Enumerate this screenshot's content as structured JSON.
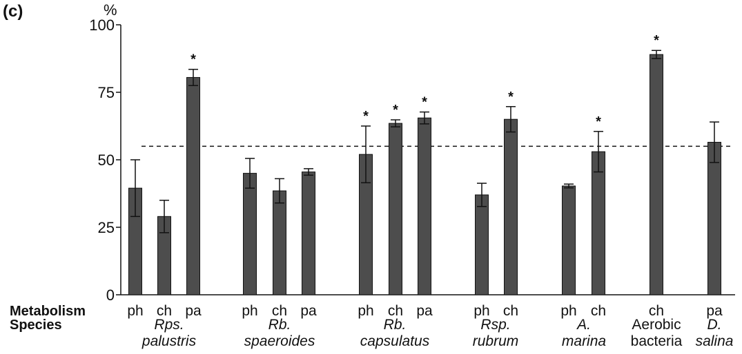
{
  "chart_data": {
    "type": "bar",
    "panel_label": "(c)",
    "ylabel": "%",
    "ylim": [
      0,
      100
    ],
    "yticks": [
      0,
      25,
      50,
      75,
      100
    ],
    "y_tick_labels": [
      "0",
      "25",
      "50",
      "75",
      "100"
    ],
    "reference_line": 55,
    "row_labels": {
      "metabolism": "Metabolism",
      "species": "Species"
    },
    "bar_color": "#4d4d4d",
    "groups": [
      {
        "species_lines": [
          "Rps.",
          "palustris"
        ],
        "italic": true,
        "bars": [
          {
            "metabolism": "ph",
            "value": 39.5,
            "err": 10.5,
            "star": false
          },
          {
            "metabolism": "ch",
            "value": 29,
            "err": 6,
            "star": false
          },
          {
            "metabolism": "pa",
            "value": 80.5,
            "err": 3,
            "star": true
          }
        ]
      },
      {
        "species_lines": [
          "Rb.",
          "spaeroides"
        ],
        "italic": true,
        "bars": [
          {
            "metabolism": "ph",
            "value": 45,
            "err": 5.5,
            "star": false
          },
          {
            "metabolism": "ch",
            "value": 38.5,
            "err": 4.5,
            "star": false
          },
          {
            "metabolism": "pa",
            "value": 45.5,
            "err": 1.2,
            "star": false
          }
        ]
      },
      {
        "species_lines": [
          "Rb.",
          "capsulatus"
        ],
        "italic": true,
        "bars": [
          {
            "metabolism": "ph",
            "value": 52,
            "err": 10.5,
            "star": true
          },
          {
            "metabolism": "ch",
            "value": 63.5,
            "err": 1.3,
            "star": true
          },
          {
            "metabolism": "pa",
            "value": 65.5,
            "err": 2.2,
            "star": true
          }
        ]
      },
      {
        "species_lines": [
          "Rsp.",
          "rubrum"
        ],
        "italic": true,
        "bars": [
          {
            "metabolism": "ph",
            "value": 37,
            "err": 4.3,
            "star": false
          },
          {
            "metabolism": "ch",
            "value": 65,
            "err": 4.7,
            "star": true
          }
        ]
      },
      {
        "species_lines": [
          "A.",
          "marina"
        ],
        "italic": true,
        "bars": [
          {
            "metabolism": "ph",
            "value": 40.3,
            "err": 0.7,
            "star": false
          },
          {
            "metabolism": "ch",
            "value": 53,
            "err": 7.5,
            "star": true
          }
        ]
      },
      {
        "species_lines": [
          "Aerobic",
          "bacteria"
        ],
        "italic": false,
        "bars": [
          {
            "metabolism": "ch",
            "value": 89,
            "err": 1.5,
            "star": true
          }
        ]
      },
      {
        "species_lines": [
          "D.",
          "salina"
        ],
        "italic": true,
        "bars": [
          {
            "metabolism": "pa",
            "value": 56.5,
            "err": 7.5,
            "star": false
          }
        ]
      }
    ]
  }
}
